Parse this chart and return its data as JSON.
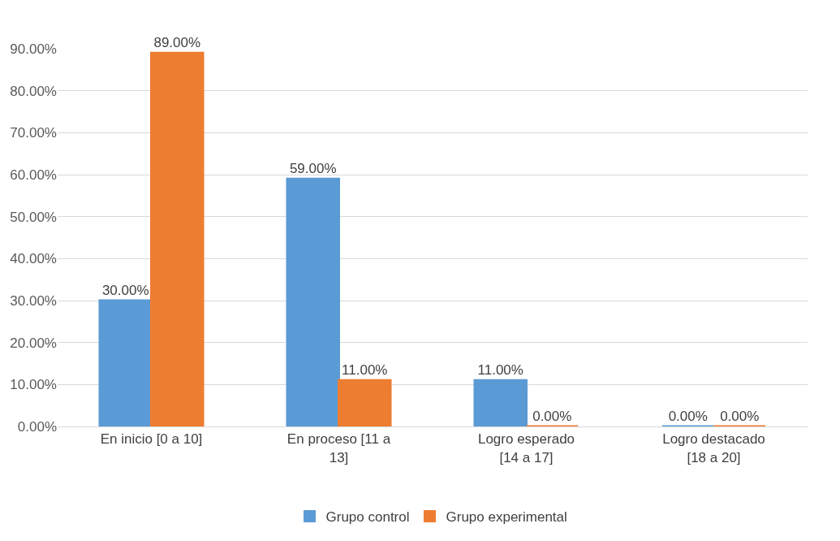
{
  "chart_data": {
    "type": "bar",
    "categories": [
      "En inicio [0 a 10]",
      "En proceso [11 a 13]",
      "Logro esperado [14 a 17]",
      "Logro destacado [18 a 20]"
    ],
    "series": [
      {
        "name": "Grupo control",
        "color": "#5b9bd5",
        "values": [
          30,
          59,
          11,
          0
        ],
        "value_labels": [
          "30.00%",
          "59.00%",
          "11.00%",
          "0.00%"
        ]
      },
      {
        "name": "Grupo experimental",
        "color": "#ed7d31",
        "values": [
          89,
          11,
          0,
          0
        ],
        "value_labels": [
          "89.00%",
          "11.00%",
          "0.00%",
          "0.00%"
        ]
      }
    ],
    "ylim": [
      0,
      90
    ],
    "yticks": [
      {
        "value": 0,
        "label": "0.00%"
      },
      {
        "value": 10,
        "label": "10.00%"
      },
      {
        "value": 20,
        "label": "20.00%"
      },
      {
        "value": 30,
        "label": "30.00%"
      },
      {
        "value": 40,
        "label": "40.00%"
      },
      {
        "value": 50,
        "label": "50.00%"
      },
      {
        "value": 60,
        "label": "60.00%"
      },
      {
        "value": 70,
        "label": "70.00%"
      },
      {
        "value": 80,
        "label": "80.00%"
      },
      {
        "value": 90,
        "label": "90.00%"
      }
    ],
    "grid": "y",
    "legend": "bottom"
  }
}
